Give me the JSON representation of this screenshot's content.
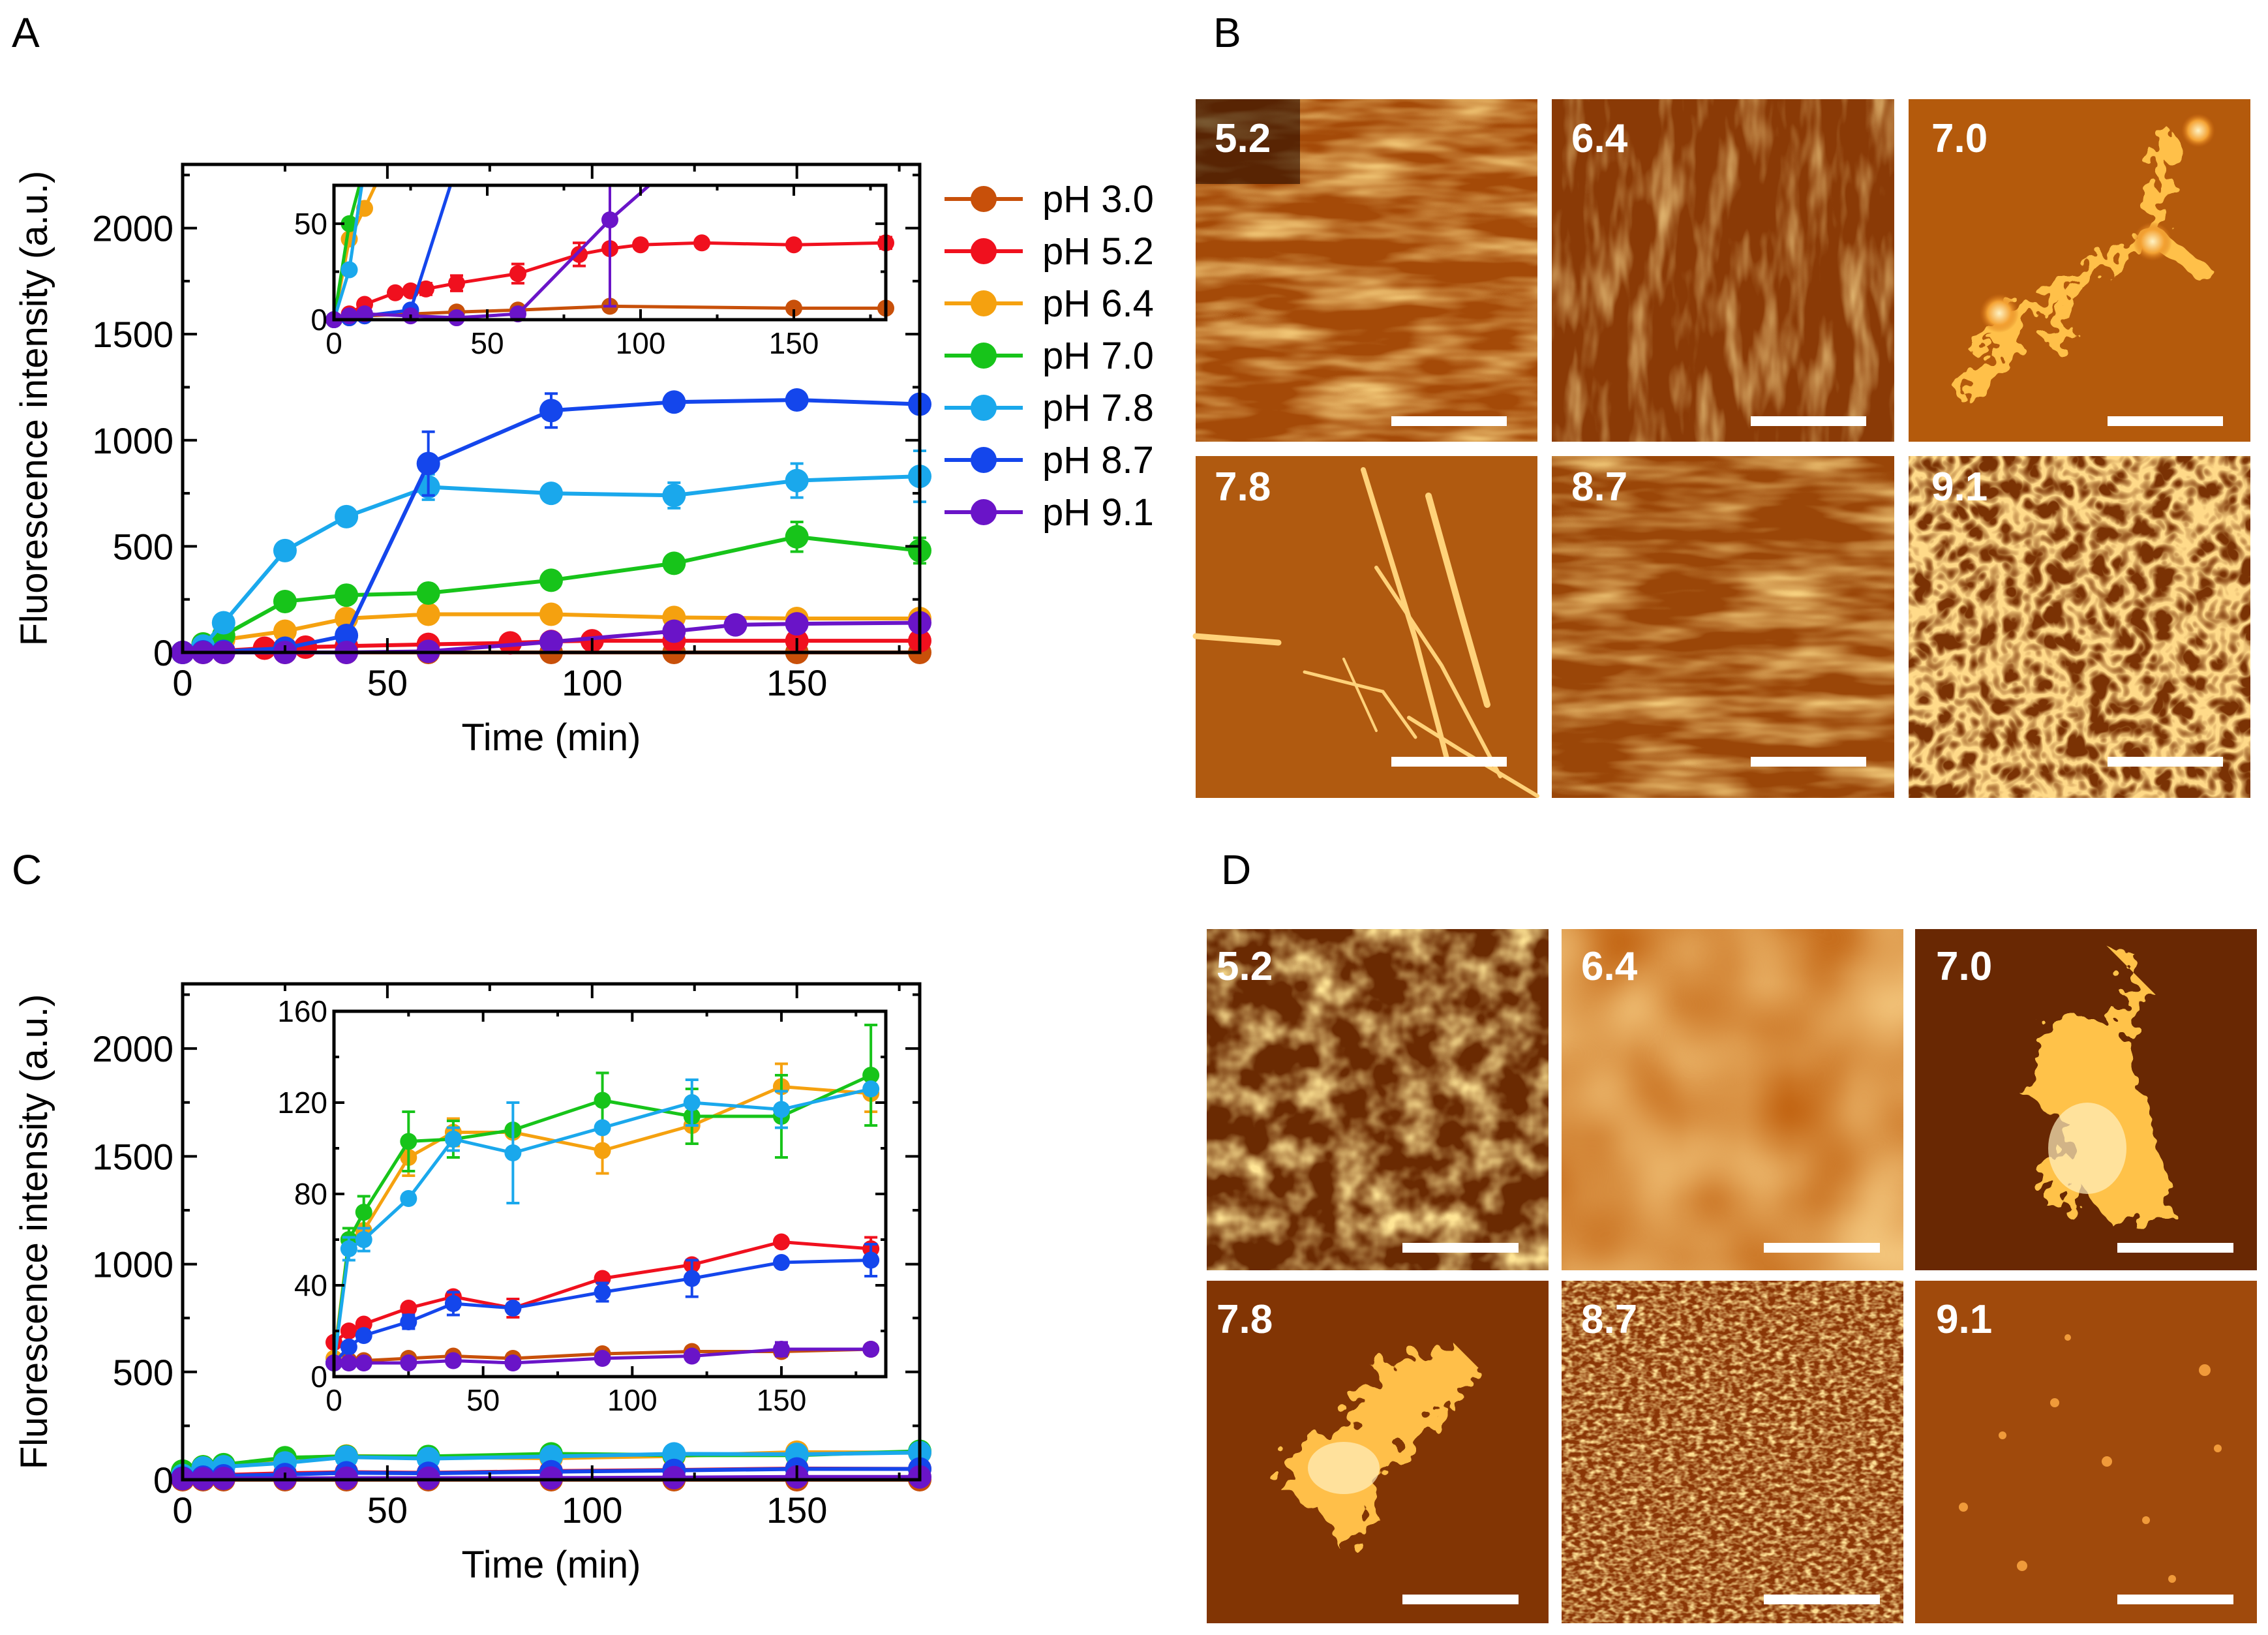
{
  "colors": {
    "pH 3.0": "#c8500a",
    "pH 5.2": "#f0101e",
    "pH 6.4": "#f5a10f",
    "pH 7.0": "#17c41a",
    "pH 7.8": "#1aa8ec",
    "pH 8.7": "#1446ec",
    "pH 9.1": "#6a14c8"
  },
  "panel_labels": {
    "A": "A",
    "B": "B",
    "C": "C",
    "D": "D"
  },
  "legend": [
    "pH 3.0",
    "pH 5.2",
    "pH 6.4",
    "pH 7.0",
    "pH 7.8",
    "pH 8.7",
    "pH 9.1"
  ],
  "image_panels": {
    "B": [
      "5.2",
      "6.4",
      "7.0",
      "7.8",
      "8.7",
      "9.1"
    ],
    "D": [
      "5.2",
      "6.4",
      "7.0",
      "7.8",
      "8.7",
      "9.1"
    ]
  },
  "chart_data": [
    {
      "id": "A-main",
      "type": "line",
      "xlabel": "Time (min)",
      "ylabel": "Fluorescence intensity (a.u.)",
      "xlim": [
        0,
        180
      ],
      "ylim": [
        0,
        2300
      ],
      "xticks": [
        0,
        50,
        100,
        150
      ],
      "yticks": [
        0,
        500,
        1000,
        1500,
        2000
      ],
      "xticklabels": [
        "0",
        "50",
        "100",
        "150"
      ],
      "yticklabels": [
        "0",
        "500",
        "1000",
        "1500",
        "2000"
      ],
      "series": [
        {
          "name": "pH 3.0",
          "x": [
            0,
            5,
            10,
            25,
            40,
            60,
            90,
            120,
            150,
            180
          ],
          "y": [
            0,
            0,
            0,
            0,
            0,
            0,
            0,
            0,
            0,
            0
          ],
          "err": []
        },
        {
          "name": "pH 5.2",
          "x": [
            0,
            5,
            10,
            20,
            25,
            30,
            40,
            60,
            80,
            90,
            100,
            120,
            150,
            180
          ],
          "y": [
            0,
            2,
            8,
            20,
            22,
            25,
            30,
            38,
            45,
            52,
            55,
            55,
            55,
            55
          ],
          "err": []
        },
        {
          "name": "pH 6.4",
          "x": [
            0,
            5,
            10,
            25,
            40,
            60,
            90,
            120,
            150,
            180
          ],
          "y": [
            0,
            40,
            60,
            100,
            160,
            180,
            180,
            165,
            160,
            160
          ],
          "err": []
        },
        {
          "name": "pH 7.0",
          "x": [
            0,
            5,
            10,
            25,
            40,
            60,
            90,
            120,
            150,
            180
          ],
          "y": [
            0,
            40,
            80,
            240,
            270,
            280,
            340,
            420,
            545,
            480
          ],
          "err": [
            0,
            0,
            0,
            0,
            0,
            0,
            0,
            0,
            70,
            60
          ]
        },
        {
          "name": "pH 7.8",
          "x": [
            0,
            5,
            10,
            25,
            40,
            60,
            90,
            120,
            150,
            180
          ],
          "y": [
            0,
            30,
            140,
            480,
            640,
            780,
            750,
            740,
            810,
            830
          ],
          "err": [
            0,
            0,
            0,
            30,
            40,
            60,
            40,
            60,
            80,
            120
          ]
        },
        {
          "name": "pH 8.7",
          "x": [
            0,
            5,
            10,
            25,
            40,
            60,
            90,
            120,
            150,
            180
          ],
          "y": [
            0,
            3,
            5,
            20,
            80,
            890,
            1140,
            1180,
            1190,
            1170
          ],
          "err": [
            0,
            0,
            0,
            0,
            0,
            150,
            80,
            40,
            40,
            30
          ]
        },
        {
          "name": "pH 9.1",
          "x": [
            0,
            5,
            10,
            25,
            40,
            60,
            90,
            120,
            135,
            150,
            180
          ],
          "y": [
            0,
            0,
            0,
            0,
            0,
            5,
            50,
            100,
            130,
            135,
            140
          ],
          "err": []
        }
      ]
    },
    {
      "id": "A-inset",
      "type": "line",
      "xlim": [
        0,
        180
      ],
      "ylim": [
        0,
        70
      ],
      "xticks": [
        0,
        50,
        100,
        150
      ],
      "yticks": [
        0,
        50
      ],
      "xticklabels": [
        "0",
        "50",
        "100",
        "150"
      ],
      "yticklabels": [
        "0",
        "50"
      ],
      "series": [
        {
          "name": "pH 3.0",
          "x": [
            0,
            5,
            10,
            25,
            40,
            60,
            90,
            150,
            180
          ],
          "y": [
            0,
            1,
            2,
            3,
            4,
            5,
            7,
            6,
            6
          ],
          "err": []
        },
        {
          "name": "pH 5.2",
          "x": [
            0,
            5,
            10,
            20,
            25,
            30,
            40,
            60,
            80,
            90,
            100,
            120,
            150,
            180
          ],
          "y": [
            0,
            3,
            8,
            14,
            15,
            16,
            19,
            24,
            34,
            37,
            39,
            40,
            39,
            40
          ],
          "err": [
            0,
            0,
            0,
            0,
            0,
            3,
            4,
            5,
            6,
            0,
            0,
            0,
            0,
            3
          ]
        },
        {
          "name": "pH 6.4",
          "x": [
            0,
            5,
            10,
            15
          ],
          "y": [
            0,
            42,
            58,
            75
          ],
          "err": []
        },
        {
          "name": "pH 7.0",
          "x": [
            0,
            5,
            10
          ],
          "y": [
            0,
            50,
            80
          ],
          "err": []
        },
        {
          "name": "pH 7.8",
          "x": [
            0,
            5,
            10
          ],
          "y": [
            0,
            26,
            80
          ],
          "err": []
        },
        {
          "name": "pH 8.7",
          "x": [
            0,
            5,
            10,
            25,
            40
          ],
          "y": [
            0,
            1,
            2,
            5,
            80
          ],
          "err": []
        },
        {
          "name": "pH 9.1",
          "x": [
            0,
            5,
            10,
            25,
            40,
            60,
            90,
            110
          ],
          "y": [
            0,
            2,
            3,
            2,
            1,
            3,
            52,
            80
          ],
          "err": [
            0,
            0,
            0,
            0,
            0,
            0,
            45,
            0
          ]
        }
      ]
    },
    {
      "id": "C-main",
      "type": "line",
      "xlabel": "Time (min)",
      "ylabel": "Fluorescence intensity (a.u.)",
      "xlim": [
        0,
        180
      ],
      "ylim": [
        0,
        2300
      ],
      "xticks": [
        0,
        50,
        100,
        150
      ],
      "yticks": [
        0,
        500,
        1000,
        1500,
        2000
      ],
      "xticklabels": [
        "0",
        "50",
        "100",
        "150"
      ],
      "yticklabels": [
        "0",
        "500",
        "1000",
        "1500",
        "2000"
      ],
      "series": [
        {
          "name": "pH 3.0",
          "x": [
            0,
            5,
            10,
            25,
            40,
            60,
            90,
            120,
            150,
            180
          ],
          "y": [
            0,
            0,
            0,
            0,
            0,
            0,
            0,
            0,
            0,
            0
          ],
          "err": []
        },
        {
          "name": "pH 5.2",
          "x": [
            0,
            5,
            10,
            25,
            40,
            60,
            90,
            120,
            150,
            180
          ],
          "y": [
            15,
            20,
            22,
            30,
            35,
            32,
            40,
            45,
            52,
            50
          ],
          "err": []
        },
        {
          "name": "pH 6.4",
          "x": [
            0,
            5,
            10,
            25,
            40,
            60,
            90,
            120,
            150,
            180
          ],
          "y": [
            30,
            60,
            65,
            100,
            110,
            105,
            100,
            110,
            128,
            125
          ],
          "err": []
        },
        {
          "name": "pH 7.0",
          "x": [
            0,
            5,
            10,
            25,
            40,
            60,
            90,
            120,
            150,
            180
          ],
          "y": [
            40,
            60,
            70,
            102,
            108,
            108,
            120,
            114,
            114,
            132
          ],
          "err": []
        },
        {
          "name": "pH 7.8",
          "x": [
            0,
            5,
            10,
            25,
            40,
            60,
            90,
            120,
            150,
            180
          ],
          "y": [
            20,
            55,
            60,
            78,
            105,
            98,
            108,
            120,
            118,
            126
          ],
          "err": []
        },
        {
          "name": "pH 8.7",
          "x": [
            0,
            5,
            10,
            25,
            40,
            60,
            90,
            120,
            150,
            180
          ],
          "y": [
            8,
            12,
            18,
            24,
            32,
            30,
            37,
            43,
            50,
            50
          ],
          "err": []
        },
        {
          "name": "pH 9.1",
          "x": [
            0,
            5,
            10,
            25,
            40,
            60,
            90,
            120,
            150,
            180
          ],
          "y": [
            5,
            5,
            6,
            6,
            7,
            7,
            8,
            10,
            13,
            13
          ],
          "err": []
        }
      ]
    },
    {
      "id": "C-inset",
      "type": "line",
      "xlim": [
        0,
        185
      ],
      "ylim": [
        0,
        160
      ],
      "xticks": [
        0,
        50,
        100,
        150
      ],
      "yticks": [
        0,
        40,
        80,
        120,
        160
      ],
      "xticklabels": [
        "0",
        "50",
        "100",
        "150"
      ],
      "yticklabels": [
        "0",
        "40",
        "80",
        "120",
        "160"
      ],
      "series": [
        {
          "name": "pH 3.0",
          "x": [
            0,
            5,
            10,
            25,
            40,
            60,
            90,
            120,
            150,
            180
          ],
          "y": [
            6,
            7,
            7,
            8,
            9,
            8,
            10,
            11,
            11,
            12
          ],
          "err": []
        },
        {
          "name": "pH 5.2",
          "x": [
            0,
            5,
            10,
            25,
            40,
            60,
            90,
            120,
            150,
            180
          ],
          "y": [
            15,
            20,
            23,
            30,
            35,
            30,
            43,
            49,
            59,
            56
          ],
          "err": [
            0,
            0,
            0,
            0,
            0,
            4,
            0,
            0,
            0,
            5
          ]
        },
        {
          "name": "pH 6.4",
          "x": [
            0,
            5,
            10,
            25,
            40,
            60,
            90,
            120,
            150,
            180
          ],
          "y": [
            8,
            60,
            64,
            96,
            107,
            107,
            99,
            110,
            127,
            124
          ],
          "err": [
            0,
            0,
            0,
            8,
            6,
            0,
            10,
            8,
            10,
            8
          ]
        },
        {
          "name": "pH 7.0",
          "x": [
            0,
            5,
            10,
            25,
            40,
            60,
            90,
            120,
            150,
            180
          ],
          "y": [
            6,
            60,
            72,
            103,
            104,
            108,
            121,
            114,
            114,
            132
          ],
          "err": [
            0,
            5,
            7,
            13,
            8,
            0,
            12,
            12,
            18,
            22
          ]
        },
        {
          "name": "pH 7.8",
          "x": [
            0,
            5,
            10,
            25,
            40,
            60,
            90,
            120,
            150,
            180
          ],
          "y": [
            6,
            56,
            60,
            78,
            104,
            98,
            109,
            120,
            117,
            126
          ],
          "err": [
            0,
            5,
            5,
            0,
            5,
            22,
            0,
            10,
            8,
            0
          ]
        },
        {
          "name": "pH 8.7",
          "x": [
            0,
            5,
            10,
            25,
            40,
            60,
            90,
            120,
            150,
            180
          ],
          "y": [
            6,
            13,
            18,
            24,
            32,
            30,
            37,
            43,
            50,
            51
          ],
          "err": [
            0,
            0,
            0,
            3,
            5,
            0,
            4,
            8,
            0,
            7
          ]
        },
        {
          "name": "pH 9.1",
          "x": [
            0,
            5,
            10,
            25,
            40,
            60,
            90,
            120,
            150,
            180
          ],
          "y": [
            6,
            6,
            6,
            6,
            7,
            6,
            8,
            9,
            12,
            12
          ],
          "err": [
            0,
            0,
            0,
            0,
            0,
            0,
            0,
            0,
            3,
            0
          ]
        }
      ]
    }
  ]
}
